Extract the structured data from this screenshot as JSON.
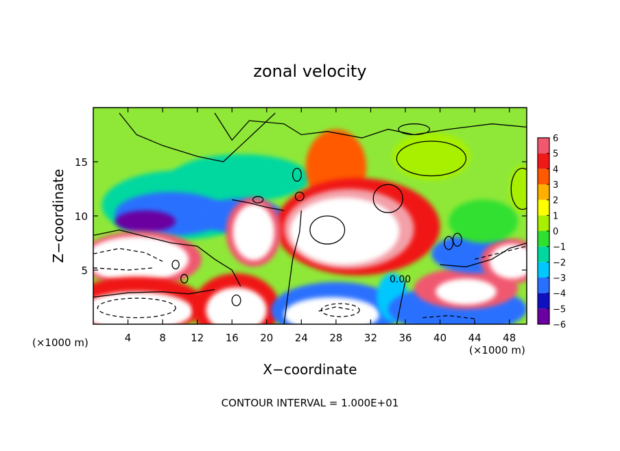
{
  "chart_data": {
    "type": "heatmap",
    "title": "zonal velocity",
    "xlabel": "X−coordinate",
    "ylabel": "Z−coordinate",
    "x_unit_left": "(×1000 m)",
    "x_unit_right": "(×1000 m)",
    "footer": "CONTOUR INTERVAL = 1.000E+01",
    "contour_label": "0.00",
    "xlim": [
      0,
      50
    ],
    "ylim": [
      0,
      20
    ],
    "xticks": [
      4,
      8,
      12,
      16,
      20,
      24,
      28,
      32,
      36,
      40,
      44,
      48
    ],
    "yticks": [
      5,
      10,
      15
    ],
    "colorbar": {
      "levels": [
        6,
        5,
        4,
        3,
        2,
        1,
        0,
        -1,
        -2,
        -3,
        -4,
        -5,
        -6
      ],
      "label_text": [
        "6",
        "5",
        "4",
        "3",
        "2",
        "1",
        "0",
        "−1",
        "−2",
        "−3",
        "−4",
        "−5",
        "−6"
      ],
      "colors": [
        "#f3a0a8",
        "#f05870",
        "#f01818",
        "#ff5a00",
        "#ffb000",
        "#ffff00",
        "#a8f000",
        "#30e030",
        "#00d8a0",
        "#00c8ff",
        "#2a70ff",
        "#1010c0",
        "#6a00a0"
      ]
    },
    "background_color": "#8fe838",
    "regions": [
      {
        "kind": "blob",
        "cx": 10,
        "cy": 11,
        "rx": 9,
        "ry": 3.2,
        "value": -2
      },
      {
        "kind": "blob",
        "cx": 17,
        "cy": 13.5,
        "rx": 8,
        "ry": 2.2,
        "value": -2
      },
      {
        "kind": "blob",
        "cx": 9,
        "cy": 10.2,
        "rx": 6.5,
        "ry": 2.0,
        "value": -4
      },
      {
        "kind": "blob",
        "cx": 6,
        "cy": 9.5,
        "rx": 3.5,
        "ry": 1.0,
        "value": -6
      },
      {
        "kind": "blob",
        "cx": 17,
        "cy": 10,
        "rx": 5,
        "ry": 1.6,
        "value": -4
      },
      {
        "kind": "blob",
        "cx": 28,
        "cy": 14.5,
        "rx": 3.5,
        "ry": 3.5,
        "value": 3
      },
      {
        "kind": "blob",
        "cx": 30.5,
        "cy": 9,
        "rx": 9.5,
        "ry": 4.5,
        "value": 4
      },
      {
        "kind": "blob",
        "cx": 29.5,
        "cy": 8.8,
        "rx": 7.5,
        "ry": 3.7,
        "value": 6
      },
      {
        "kind": "blob",
        "cx": 29,
        "cy": 8.6,
        "rx": 6.3,
        "ry": 3.1,
        "value": 7
      },
      {
        "kind": "blob",
        "cx": 18.5,
        "cy": 8.5,
        "rx": 3.2,
        "ry": 3.2,
        "value": 5
      },
      {
        "kind": "blob",
        "cx": 18.5,
        "cy": 8.5,
        "rx": 2.4,
        "ry": 2.6,
        "value": 7
      },
      {
        "kind": "blob",
        "cx": 5.5,
        "cy": 6,
        "rx": 7,
        "ry": 2.6,
        "value": 5
      },
      {
        "kind": "blob",
        "cx": 5,
        "cy": 6,
        "rx": 6,
        "ry": 2.1,
        "value": 7
      },
      {
        "kind": "blob",
        "cx": 5,
        "cy": 1.8,
        "rx": 8,
        "ry": 2.6,
        "value": 4
      },
      {
        "kind": "blob",
        "cx": 5,
        "cy": 1.2,
        "rx": 6.5,
        "ry": 1.8,
        "value": 7
      },
      {
        "kind": "blob",
        "cx": 16.5,
        "cy": 1.5,
        "rx": 5,
        "ry": 3.2,
        "value": 4
      },
      {
        "kind": "blob",
        "cx": 16.5,
        "cy": 1.3,
        "rx": 3.5,
        "ry": 2.1,
        "value": 7
      },
      {
        "kind": "blob",
        "cx": 28,
        "cy": 1.3,
        "rx": 7.5,
        "ry": 2.6,
        "value": -4
      },
      {
        "kind": "blob",
        "cx": 27.5,
        "cy": 0.9,
        "rx": 5.5,
        "ry": 1.6,
        "value": 7
      },
      {
        "kind": "blob",
        "cx": 34.5,
        "cy": 2.5,
        "rx": 1.8,
        "ry": 2.2,
        "value": -3
      },
      {
        "kind": "blob",
        "cx": 42,
        "cy": 1.4,
        "rx": 8,
        "ry": 2.2,
        "value": -4
      },
      {
        "kind": "blob",
        "cx": 43,
        "cy": 3.3,
        "rx": 6,
        "ry": 1.9,
        "value": 5
      },
      {
        "kind": "blob",
        "cx": 43,
        "cy": 3.0,
        "rx": 3.5,
        "ry": 1.2,
        "value": 7
      },
      {
        "kind": "blob",
        "cx": 44,
        "cy": 6.5,
        "rx": 5,
        "ry": 1.8,
        "value": -4
      },
      {
        "kind": "blob",
        "cx": 48.2,
        "cy": 5.8,
        "rx": 3.5,
        "ry": 2.1,
        "value": 5
      },
      {
        "kind": "blob",
        "cx": 48.3,
        "cy": 5.8,
        "rx": 2.6,
        "ry": 1.6,
        "value": 7
      },
      {
        "kind": "blob",
        "cx": 39,
        "cy": 15.5,
        "rx": 4.5,
        "ry": 2.2,
        "value": 0.5
      },
      {
        "kind": "blob",
        "cx": 49.5,
        "cy": 12.5,
        "rx": 1.5,
        "ry": 2.2,
        "value": 0.5
      },
      {
        "kind": "blob",
        "cx": 45,
        "cy": 9.5,
        "rx": 4,
        "ry": 2.0,
        "value": -1
      }
    ],
    "contours": [
      {
        "style": "solid",
        "points": [
          [
            0,
            2.5
          ],
          [
            4,
            2.9
          ],
          [
            8,
            3
          ],
          [
            11,
            2.8
          ],
          [
            14,
            3.2
          ]
        ]
      },
      {
        "style": "solid",
        "points": [
          [
            0,
            8.2
          ],
          [
            3,
            8.7
          ],
          [
            6,
            8.1
          ],
          [
            9,
            7.5
          ],
          [
            12,
            7.2
          ],
          [
            14,
            6.0
          ],
          [
            16,
            5.0
          ],
          [
            17,
            3.5
          ]
        ]
      },
      {
        "style": "solid",
        "points": [
          [
            22,
            0
          ],
          [
            22.5,
            3
          ],
          [
            23,
            6
          ],
          [
            23.8,
            8.5
          ],
          [
            24,
            10.5
          ]
        ]
      },
      {
        "style": "solid",
        "points": [
          [
            35,
            0
          ],
          [
            35.5,
            2
          ],
          [
            36,
            4
          ]
        ]
      },
      {
        "style": "solid",
        "points": [
          [
            40,
            5.5
          ],
          [
            43,
            5.3
          ],
          [
            46,
            6.0
          ],
          [
            48,
            7.0
          ],
          [
            50,
            7.5
          ]
        ]
      },
      {
        "style": "solid",
        "points": [
          [
            16,
            11.5
          ],
          [
            18,
            11.2
          ],
          [
            20,
            10.8
          ],
          [
            22,
            10.5
          ]
        ]
      },
      {
        "style": "solid",
        "points": [
          [
            14,
            19.5
          ],
          [
            16,
            17
          ],
          [
            18,
            18.8
          ],
          [
            22,
            18.5
          ],
          [
            24,
            17.5
          ],
          [
            27,
            17.8
          ],
          [
            31,
            17.2
          ],
          [
            34,
            18
          ],
          [
            37,
            17.5
          ],
          [
            41,
            18
          ],
          [
            46,
            18.5
          ],
          [
            50,
            18.2
          ]
        ]
      },
      {
        "style": "solid",
        "points": [
          [
            3,
            19.5
          ],
          [
            5,
            17.5
          ],
          [
            8,
            16.5
          ],
          [
            12,
            15.5
          ],
          [
            15,
            15.0
          ],
          [
            17,
            16.5
          ],
          [
            19,
            18.0
          ],
          [
            21,
            19.5
          ]
        ]
      },
      {
        "style": "dashed",
        "points": [
          [
            0,
            6.5
          ],
          [
            3,
            7
          ],
          [
            6,
            6.6
          ],
          [
            8,
            5.8
          ]
        ]
      },
      {
        "style": "dashed",
        "points": [
          [
            0,
            5.2
          ],
          [
            4,
            5.0
          ],
          [
            7,
            5.2
          ]
        ]
      },
      {
        "style": "dashed",
        "points": [
          [
            44,
            6
          ],
          [
            47,
            6.6
          ],
          [
            50,
            7.2
          ]
        ]
      },
      {
        "style": "dashed",
        "points": [
          [
            26,
            1.2
          ],
          [
            28,
            1.6
          ],
          [
            30,
            1.3
          ]
        ]
      },
      {
        "style": "dashed",
        "points": [
          [
            38,
            0.6
          ],
          [
            41,
            0.8
          ],
          [
            44,
            0.5
          ]
        ]
      }
    ],
    "closed_contours": [
      {
        "style": "solid",
        "cx": 39,
        "cy": 15.3,
        "rx": 4.0,
        "ry": 1.6
      },
      {
        "style": "solid",
        "cx": 49.5,
        "cy": 12.5,
        "rx": 1.3,
        "ry": 1.9
      },
      {
        "style": "solid",
        "cx": 34,
        "cy": 11.6,
        "rx": 1.7,
        "ry": 1.3
      },
      {
        "style": "solid",
        "cx": 37,
        "cy": 18,
        "rx": 1.8,
        "ry": 0.5
      },
      {
        "style": "solid",
        "cx": 27,
        "cy": 8.7,
        "rx": 2.0,
        "ry": 1.3
      },
      {
        "style": "solid",
        "cx": 16.5,
        "cy": 2.2,
        "rx": 0.5,
        "ry": 0.5
      },
      {
        "style": "solid",
        "cx": 19,
        "cy": 11.5,
        "rx": 0.6,
        "ry": 0.3
      },
      {
        "style": "solid",
        "cx": 9.5,
        "cy": 5.5,
        "rx": 0.4,
        "ry": 0.4
      },
      {
        "style": "solid",
        "cx": 10.5,
        "cy": 4.2,
        "rx": 0.4,
        "ry": 0.4
      },
      {
        "style": "solid",
        "cx": 23.5,
        "cy": 13.8,
        "rx": 0.5,
        "ry": 0.6
      },
      {
        "style": "solid",
        "cx": 23.8,
        "cy": 11.8,
        "rx": 0.5,
        "ry": 0.4
      },
      {
        "style": "solid",
        "cx": 41,
        "cy": 7.5,
        "rx": 0.5,
        "ry": 0.6
      },
      {
        "style": "solid",
        "cx": 42,
        "cy": 7.8,
        "rx": 0.5,
        "ry": 0.6
      },
      {
        "style": "dashed",
        "cx": 5,
        "cy": 1.5,
        "rx": 4.5,
        "ry": 0.9
      },
      {
        "style": "dashed",
        "cx": 28.5,
        "cy": 1.3,
        "rx": 2.2,
        "ry": 0.6
      }
    ]
  }
}
